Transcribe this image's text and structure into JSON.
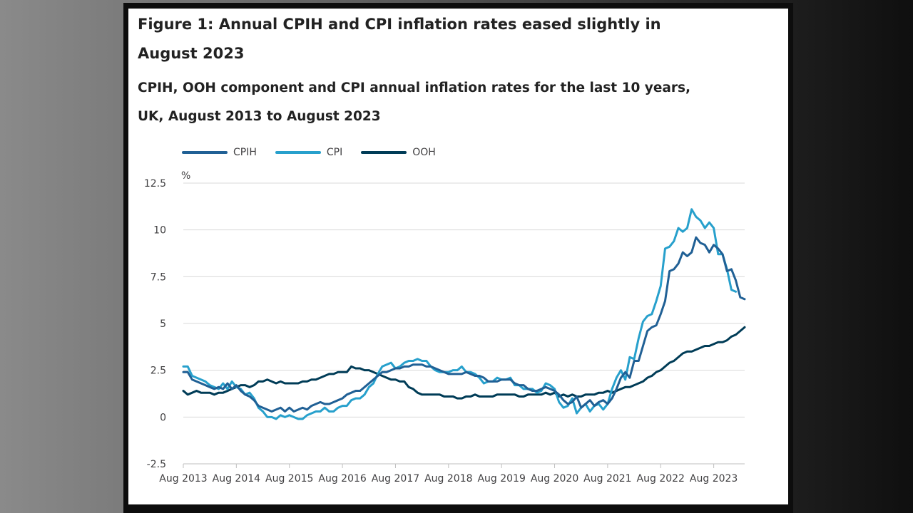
{
  "figure": {
    "title": "Figure 1: Annual CPIH and CPI inflation rates eased slightly in August 2023",
    "subtitle": "CPIH, OOH component and CPI annual inflation rates for the last 10 years, UK, August 2013 to August 2023"
  },
  "chart_data": {
    "type": "line",
    "title": "Figure 1: Annual CPIH and CPI inflation rates eased slightly in August 2023",
    "subtitle": "CPIH, OOH component and CPI annual inflation rates for the last 10 years, UK, August 2013 to August 2023",
    "xlabel": "",
    "ylabel": "%",
    "ylim": [
      -2.5,
      12.5
    ],
    "yticks": [
      -2.5,
      0,
      2.5,
      5,
      7.5,
      10,
      12.5
    ],
    "ytick_labels": [
      "-2.5",
      "0",
      "2.5",
      "5",
      "7.5",
      "10",
      "12.5"
    ],
    "x_tick_labels": [
      "Aug 2013",
      "Aug 2014",
      "Aug 2015",
      "Aug 2016",
      "Aug 2017",
      "Aug 2018",
      "Aug 2019",
      "Aug 2020",
      "Aug 2021",
      "Aug 2022",
      "Aug 2023"
    ],
    "x_start": "Aug 2013",
    "x_end": "Aug 2023",
    "frequency": "monthly",
    "grid": true,
    "legend_position": "top-left",
    "series": [
      {
        "name": "CPIH",
        "color": "#206095",
        "values": [
          2.4,
          2.4,
          2.0,
          1.9,
          1.8,
          1.7,
          1.6,
          1.5,
          1.6,
          1.5,
          1.8,
          1.5,
          1.7,
          1.4,
          1.2,
          1.1,
          0.9,
          0.6,
          0.5,
          0.4,
          0.3,
          0.4,
          0.5,
          0.3,
          0.5,
          0.3,
          0.4,
          0.5,
          0.4,
          0.6,
          0.7,
          0.8,
          0.7,
          0.7,
          0.8,
          0.9,
          1.0,
          1.2,
          1.3,
          1.4,
          1.4,
          1.6,
          1.8,
          2.0,
          2.2,
          2.4,
          2.4,
          2.5,
          2.6,
          2.6,
          2.7,
          2.7,
          2.8,
          2.8,
          2.8,
          2.7,
          2.7,
          2.6,
          2.5,
          2.4,
          2.3,
          2.3,
          2.3,
          2.3,
          2.4,
          2.3,
          2.2,
          2.2,
          2.1,
          1.9,
          1.9,
          1.9,
          2.0,
          2.0,
          2.0,
          1.8,
          1.7,
          1.7,
          1.5,
          1.4,
          1.4,
          1.5,
          1.6,
          1.5,
          1.4,
          1.2,
          0.9,
          0.7,
          0.8,
          1.1,
          0.5,
          0.7,
          0.9,
          0.6,
          0.8,
          0.9,
          0.7,
          1.0,
          1.5,
          2.1,
          2.4,
          2.1,
          3.0,
          3.0,
          3.8,
          4.6,
          4.8,
          4.9,
          5.5,
          6.2,
          7.8,
          7.9,
          8.2,
          8.8,
          8.6,
          8.8,
          9.6,
          9.3,
          9.2,
          8.8,
          9.2,
          9.0,
          8.7,
          7.8,
          7.9,
          7.3,
          6.4,
          6.3
        ]
      },
      {
        "name": "CPI",
        "color": "#27a0cc",
        "values": [
          2.7,
          2.7,
          2.2,
          2.1,
          2.0,
          1.9,
          1.7,
          1.6,
          1.5,
          1.8,
          1.5,
          1.9,
          1.6,
          1.5,
          1.2,
          1.3,
          1.0,
          0.5,
          0.3,
          0.0,
          0.0,
          -0.1,
          0.1,
          0.0,
          0.1,
          0.0,
          -0.1,
          -0.1,
          0.1,
          0.2,
          0.3,
          0.3,
          0.5,
          0.3,
          0.3,
          0.5,
          0.6,
          0.6,
          0.9,
          1.0,
          1.0,
          1.2,
          1.6,
          1.8,
          2.3,
          2.7,
          2.8,
          2.9,
          2.6,
          2.7,
          2.9,
          3.0,
          3.0,
          3.1,
          3.0,
          3.0,
          2.7,
          2.5,
          2.4,
          2.4,
          2.4,
          2.5,
          2.5,
          2.7,
          2.4,
          2.4,
          2.3,
          2.1,
          1.8,
          1.9,
          1.9,
          2.1,
          2.0,
          2.0,
          2.1,
          1.7,
          1.7,
          1.5,
          1.5,
          1.5,
          1.3,
          1.4,
          1.8,
          1.7,
          1.5,
          0.8,
          0.5,
          0.6,
          1.0,
          0.2,
          0.5,
          0.7,
          0.3,
          0.6,
          0.7,
          0.4,
          0.7,
          1.5,
          2.1,
          2.5,
          2.0,
          3.2,
          3.1,
          4.2,
          5.1,
          5.4,
          5.5,
          6.2,
          7.0,
          9.0,
          9.1,
          9.4,
          10.1,
          9.9,
          10.1,
          11.1,
          10.7,
          10.5,
          10.1,
          10.4,
          10.1,
          8.7,
          8.7,
          7.9,
          6.8,
          6.7
        ]
      },
      {
        "name": "OOH",
        "color": "#003c57",
        "values": [
          1.4,
          1.2,
          1.3,
          1.4,
          1.3,
          1.3,
          1.3,
          1.2,
          1.3,
          1.3,
          1.4,
          1.5,
          1.6,
          1.7,
          1.7,
          1.6,
          1.7,
          1.9,
          1.9,
          2.0,
          1.9,
          1.8,
          1.9,
          1.8,
          1.8,
          1.8,
          1.8,
          1.9,
          1.9,
          2.0,
          2.0,
          2.1,
          2.2,
          2.3,
          2.3,
          2.4,
          2.4,
          2.4,
          2.7,
          2.6,
          2.6,
          2.5,
          2.5,
          2.4,
          2.3,
          2.2,
          2.1,
          2.0,
          2.0,
          1.9,
          1.9,
          1.6,
          1.5,
          1.3,
          1.2,
          1.2,
          1.2,
          1.2,
          1.2,
          1.1,
          1.1,
          1.1,
          1.0,
          1.0,
          1.1,
          1.1,
          1.2,
          1.1,
          1.1,
          1.1,
          1.1,
          1.2,
          1.2,
          1.2,
          1.2,
          1.2,
          1.1,
          1.1,
          1.2,
          1.2,
          1.2,
          1.2,
          1.3,
          1.2,
          1.3,
          1.1,
          1.2,
          1.1,
          1.2,
          1.1,
          1.1,
          1.2,
          1.2,
          1.2,
          1.3,
          1.3,
          1.4,
          1.3,
          1.4,
          1.5,
          1.6,
          1.6,
          1.7,
          1.8,
          1.9,
          2.1,
          2.2,
          2.4,
          2.5,
          2.7,
          2.9,
          3.0,
          3.2,
          3.4,
          3.5,
          3.5,
          3.6,
          3.7,
          3.8,
          3.8,
          3.9,
          4.0,
          4.0,
          4.1,
          4.3,
          4.4,
          4.6,
          4.8
        ]
      }
    ]
  }
}
